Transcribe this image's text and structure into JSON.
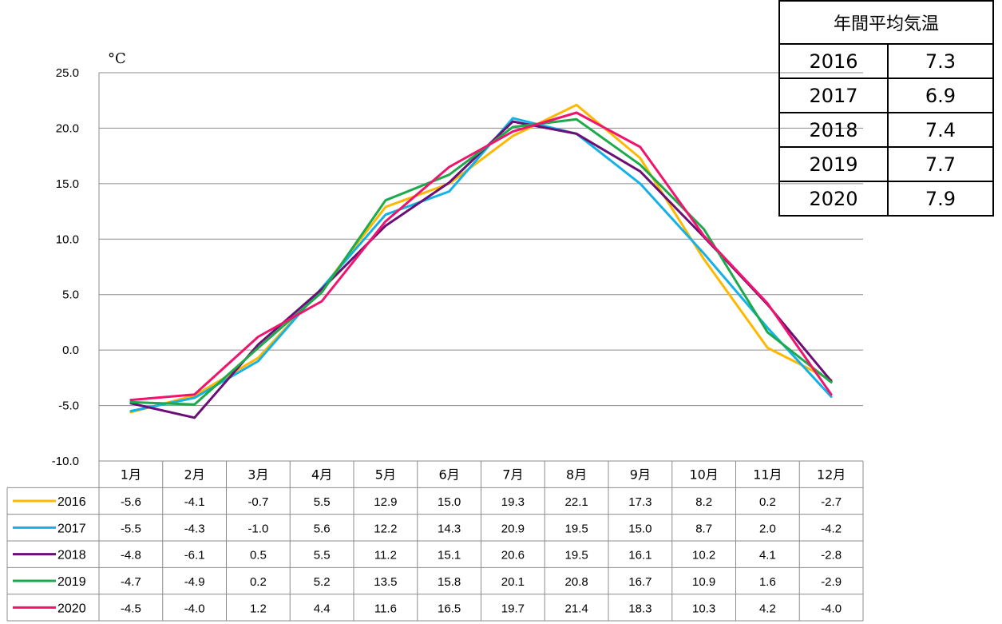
{
  "unit_label": "°C",
  "annual_table": {
    "title": "年間平均気温",
    "rows": [
      {
        "year": "2016",
        "value": "7.3"
      },
      {
        "year": "2017",
        "value": "6.9"
      },
      {
        "year": "2018",
        "value": "7.4"
      },
      {
        "year": "2019",
        "value": "7.7"
      },
      {
        "year": "2020",
        "value": "7.9"
      }
    ]
  },
  "chart_data": {
    "type": "line",
    "title": "",
    "xlabel": "",
    "ylabel": "°C",
    "ylim": [
      -10,
      25
    ],
    "yticks": [
      "25.0",
      "20.0",
      "15.0",
      "10.0",
      "5.0",
      "0.0",
      "-5.0",
      "-10.0"
    ],
    "grid": true,
    "legend": "data-table",
    "categories": [
      "1月",
      "2月",
      "3月",
      "4月",
      "5月",
      "6月",
      "7月",
      "8月",
      "9月",
      "10月",
      "11月",
      "12月"
    ],
    "series": [
      {
        "name": "2016",
        "color": "#FFB800",
        "values": [
          -5.6,
          -4.1,
          -0.7,
          5.5,
          12.9,
          15.0,
          19.3,
          22.1,
          17.3,
          8.2,
          0.2,
          -2.7
        ],
        "labels": [
          "-5.6",
          "-4.1",
          "-0.7",
          "5.5",
          "12.9",
          "15.0",
          "19.3",
          "22.1",
          "17.3",
          "8.2",
          "0.2",
          "-2.7"
        ]
      },
      {
        "name": "2017",
        "color": "#14B1E7",
        "values": [
          -5.5,
          -4.3,
          -1.0,
          5.6,
          12.2,
          14.3,
          20.9,
          19.5,
          15.0,
          8.7,
          2.0,
          -4.2
        ],
        "labels": [
          "-5.5",
          "-4.3",
          "-1.0",
          "5.6",
          "12.2",
          "14.3",
          "20.9",
          "19.5",
          "15.0",
          "8.7",
          "2.0",
          "-4.2"
        ]
      },
      {
        "name": "2018",
        "color": "#6A0F75",
        "values": [
          -4.8,
          -6.1,
          0.5,
          5.5,
          11.2,
          15.1,
          20.6,
          19.5,
          16.1,
          10.2,
          4.1,
          -2.8
        ],
        "labels": [
          "-4.8",
          "-6.1",
          "0.5",
          "5.5",
          "11.2",
          "15.1",
          "20.6",
          "19.5",
          "16.1",
          "10.2",
          "4.1",
          "-2.8"
        ]
      },
      {
        "name": "2019",
        "color": "#1DAA4B",
        "values": [
          -4.7,
          -4.9,
          0.2,
          5.2,
          13.5,
          15.8,
          20.1,
          20.8,
          16.7,
          10.9,
          1.6,
          -2.9
        ],
        "labels": [
          "-4.7",
          "-4.9",
          "0.2",
          "5.2",
          "13.5",
          "15.8",
          "20.1",
          "20.8",
          "16.7",
          "10.9",
          "1.6",
          "-2.9"
        ]
      },
      {
        "name": "2020",
        "color": "#F0146E",
        "values": [
          -4.5,
          -4.0,
          1.2,
          4.4,
          11.6,
          16.5,
          19.7,
          21.4,
          18.3,
          10.3,
          4.2,
          -4.0
        ],
        "labels": [
          "-4.5",
          "-4.0",
          "1.2",
          "4.4",
          "11.6",
          "16.5",
          "19.7",
          "21.4",
          "18.3",
          "10.3",
          "4.2",
          "-4.0"
        ]
      }
    ]
  }
}
